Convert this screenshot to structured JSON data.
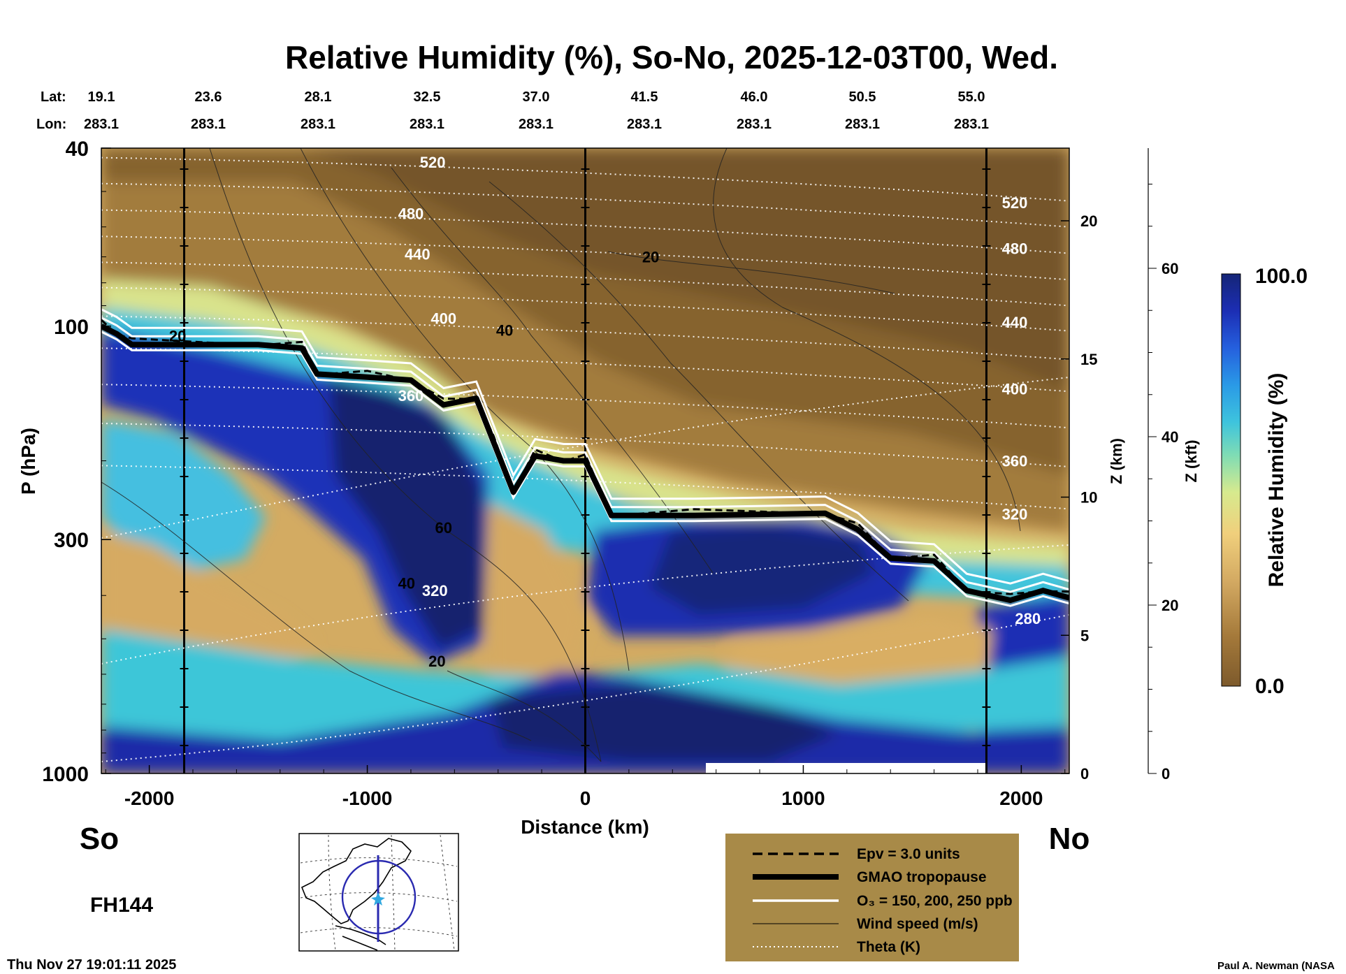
{
  "chart_data": {
    "type": "heatmap",
    "title": "Relative Humidity (%), So-No, 2025-12-03T00, Wed.",
    "xlabel": "Distance (km)",
    "ylabel": "P (hPa)",
    "y2label": "Z (km)",
    "y3label": "Z (kft)",
    "xlim": [
      -2220,
      2220
    ],
    "ylim_hpa": [
      1000,
      40
    ],
    "x_ticks": [
      {
        "value": -2000,
        "label": "-2000"
      },
      {
        "value": -1000,
        "label": "-1000"
      },
      {
        "value": 0,
        "label": "0"
      },
      {
        "value": 1000,
        "label": "1000"
      },
      {
        "value": 2000,
        "label": "2000"
      }
    ],
    "y_ticks": [
      {
        "value": 40,
        "label": "40"
      },
      {
        "value": 100,
        "label": "100"
      },
      {
        "value": 300,
        "label": "300"
      },
      {
        "value": 1000,
        "label": "1000"
      }
    ],
    "z_km_ticks": [
      {
        "value": 0,
        "label": "0"
      },
      {
        "value": 5,
        "label": "5"
      },
      {
        "value": 10,
        "label": "10"
      },
      {
        "value": 15,
        "label": "15"
      },
      {
        "value": 20,
        "label": "20"
      }
    ],
    "z_kft_ticks": [
      {
        "value": 0,
        "label": "0"
      },
      {
        "value": 20,
        "label": "20"
      },
      {
        "value": 40,
        "label": "40"
      },
      {
        "value": 60,
        "label": "60"
      }
    ],
    "lat_label": "Lat:",
    "lon_label": "Lon:",
    "lats": [
      "19.1",
      "23.6",
      "28.1",
      "32.5",
      "37.0",
      "41.5",
      "46.0",
      "50.5",
      "55.0"
    ],
    "lons": [
      "283.1",
      "283.1",
      "283.1",
      "283.1",
      "283.1",
      "283.1",
      "283.1",
      "283.1",
      "283.1"
    ],
    "colorbar": {
      "label": "Relative Humidity (%)",
      "min": 0.0,
      "max": 100.0,
      "min_label": "0.0",
      "max_label": "100.0"
    },
    "tropopause_hpa": [
      {
        "x": -2220,
        "p": 100
      },
      {
        "x": -2150,
        "p": 104
      },
      {
        "x": -2080,
        "p": 110
      },
      {
        "x": -1500,
        "p": 110
      },
      {
        "x": -1300,
        "p": 112
      },
      {
        "x": -1230,
        "p": 128
      },
      {
        "x": -1000,
        "p": 130
      },
      {
        "x": -800,
        "p": 132
      },
      {
        "x": -650,
        "p": 150
      },
      {
        "x": -500,
        "p": 145
      },
      {
        "x": -420,
        "p": 182
      },
      {
        "x": -330,
        "p": 235
      },
      {
        "x": -230,
        "p": 195
      },
      {
        "x": -100,
        "p": 200
      },
      {
        "x": 0,
        "p": 200
      },
      {
        "x": 120,
        "p": 265
      },
      {
        "x": 500,
        "p": 265
      },
      {
        "x": 1100,
        "p": 262
      },
      {
        "x": 1250,
        "p": 285
      },
      {
        "x": 1400,
        "p": 330
      },
      {
        "x": 1600,
        "p": 335
      },
      {
        "x": 1750,
        "p": 390
      },
      {
        "x": 1950,
        "p": 410
      },
      {
        "x": 2100,
        "p": 390
      },
      {
        "x": 2220,
        "p": 405
      }
    ],
    "theta_labels": [
      {
        "value": "520",
        "x": -700,
        "p": 43
      },
      {
        "value": "480",
        "x": -800,
        "p": 56
      },
      {
        "value": "440",
        "x": -770,
        "p": 69
      },
      {
        "value": "400",
        "x": -650,
        "p": 96
      },
      {
        "value": "360",
        "x": -800,
        "p": 143
      },
      {
        "value": "320",
        "x": -690,
        "p": 390
      },
      {
        "value": "520",
        "x": 1970,
        "p": 53
      },
      {
        "value": "480",
        "x": 1970,
        "p": 67
      },
      {
        "value": "440",
        "x": 1970,
        "p": 98
      },
      {
        "value": "400",
        "x": 1970,
        "p": 138
      },
      {
        "value": "360",
        "x": 1970,
        "p": 200
      },
      {
        "value": "320",
        "x": 1970,
        "p": 263
      },
      {
        "value": "280",
        "x": 2030,
        "p": 450
      }
    ],
    "wind_labels": [
      {
        "value": "20",
        "x": 300,
        "p": 70
      },
      {
        "value": "40",
        "x": -370,
        "p": 102
      },
      {
        "value": "60",
        "x": -650,
        "p": 282
      },
      {
        "value": "40",
        "x": -820,
        "p": 375
      },
      {
        "value": "20",
        "x": -680,
        "p": 560
      },
      {
        "value": "20",
        "x": -1870,
        "p": 105
      }
    ],
    "legend": [
      {
        "style": "dashed",
        "label": "Epv = 3.0 units"
      },
      {
        "style": "thick",
        "label": "GMAO tropopause"
      },
      {
        "style": "white",
        "label": "O₃ = 150, 200, 250 ppb"
      },
      {
        "style": "thin",
        "label": "Wind speed (m/s)"
      },
      {
        "style": "dotted",
        "label": "Theta (K)"
      }
    ],
    "endpoints": {
      "south": "So",
      "north": "No"
    }
  },
  "forecast_hour": "FH144",
  "timestamp": "Thu Nov 27 19:01:11 2025",
  "credit": "Paul A. Newman (NASA",
  "colors": {
    "legend_bg": "#a88a48",
    "brown": "#7a5a2e",
    "tan": "#d3ab62",
    "cyan": "#3fc4dc",
    "blue": "#1a2aa8",
    "navy": "#16246e"
  }
}
